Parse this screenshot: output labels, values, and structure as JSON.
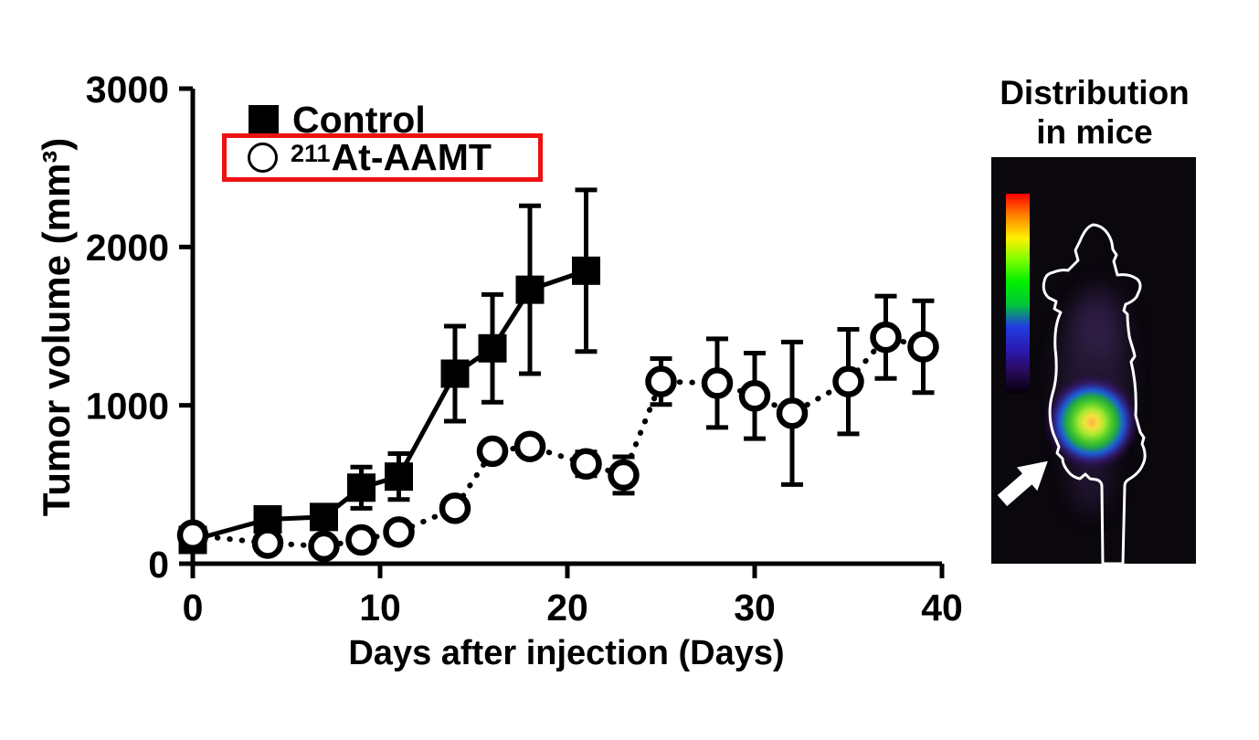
{
  "figure": {
    "background": "#ffffff",
    "axis_color": "#000000"
  },
  "chart": {
    "y_axis": {
      "title": "Tumor volume (mm³)"
    },
    "x_axis": {
      "title": "Days after injection (Days)"
    },
    "legend": {
      "control_label": "Control",
      "aamt_isotope": "211",
      "aamt_label": "At-AAMT",
      "highlight_box_color": "#ee1111"
    }
  },
  "chart_data": {
    "type": "line",
    "title": "",
    "xlabel": "Days after injection (Days)",
    "ylabel": "Tumor volume (mm3)",
    "xlim": [
      0,
      40
    ],
    "ylim": [
      0,
      3000
    ],
    "x_ticks": [
      0,
      10,
      20,
      30,
      40
    ],
    "y_ticks": [
      0,
      1000,
      2000,
      3000
    ],
    "grid": false,
    "legend_position": "top-left",
    "series": [
      {
        "name": "Control",
        "marker": "filled-square",
        "line_style": "solid",
        "x": [
          0,
          4,
          7,
          9,
          11,
          14,
          16,
          18,
          21
        ],
        "y": [
          150,
          280,
          295,
          480,
          550,
          1200,
          1360,
          1730,
          1850
        ],
        "yerr": [
          0,
          0,
          0,
          130,
          145,
          300,
          340,
          530,
          510
        ]
      },
      {
        "name": "211At-AAMT",
        "marker": "open-circle",
        "line_style": "dotted",
        "x": [
          0,
          4,
          7,
          9,
          11,
          14,
          16,
          18,
          21,
          23,
          25,
          28,
          30,
          32,
          35,
          37,
          39
        ],
        "y": [
          180,
          130,
          110,
          150,
          200,
          350,
          710,
          740,
          630,
          560,
          1150,
          1140,
          1060,
          950,
          1150,
          1430,
          1370
        ],
        "yerr": [
          0,
          0,
          0,
          0,
          0,
          0,
          0,
          0,
          75,
          115,
          145,
          280,
          270,
          450,
          330,
          260,
          290
        ]
      }
    ]
  },
  "mice_panel": {
    "title_line1": "Distribution",
    "title_line2": "in mice",
    "colorbar": {
      "colors": [
        "#ff0000",
        "#ff8400",
        "#fff000",
        "#7dff00",
        "#00ee00",
        "#00c838",
        "#1f3de0",
        "#2b1bb4",
        "#2a0a5e",
        "#05000a"
      ]
    },
    "hotspot_colors": [
      "#ffad49",
      "#f5e13c",
      "#a8e832",
      "#4ecb27",
      "#21a844",
      "#1b5fd6",
      "#2c2f9a"
    ]
  }
}
